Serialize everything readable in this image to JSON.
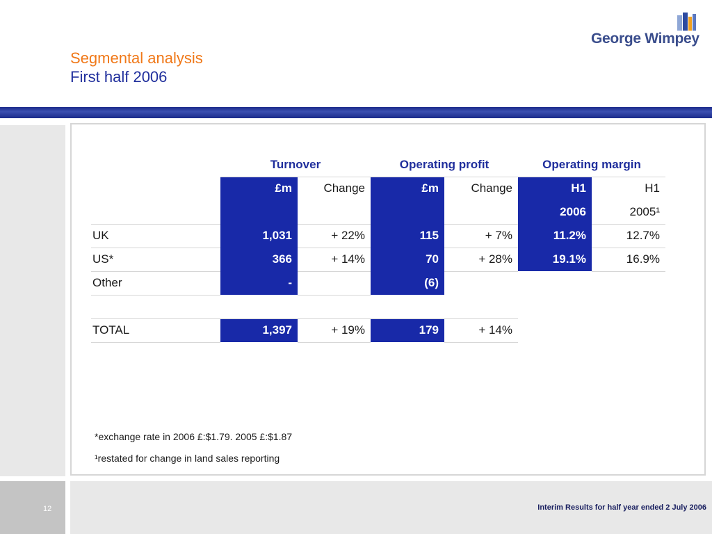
{
  "title": {
    "line1": "Segmental analysis",
    "line2": "First half 2006"
  },
  "logo": {
    "text": "George Wimpey"
  },
  "colors": {
    "title_orange": "#f07818",
    "title_blue": "#1f2e9c",
    "highlight": "#1829a8"
  },
  "table": {
    "groups": [
      "Turnover",
      "Operating profit",
      "Operating margin"
    ],
    "subheaders": {
      "row1": [
        "£m",
        "Change",
        "£m",
        "Change",
        "H1",
        "H1"
      ],
      "row2": [
        "",
        "",
        "",
        "",
        "2006",
        "2005¹"
      ]
    },
    "rows": [
      {
        "label": "UK",
        "turnover": "1,031",
        "turnover_change": "+ 22%",
        "profit": "115",
        "profit_change": "+ 7%",
        "margin_2006": "11.2%",
        "margin_2005": "12.7%"
      },
      {
        "label": "US*",
        "turnover": "366",
        "turnover_change": "+ 14%",
        "profit": "70",
        "profit_change": "+ 28%",
        "margin_2006": "19.1%",
        "margin_2005": "16.9%"
      },
      {
        "label": "Other",
        "turnover": "-",
        "turnover_change": "",
        "profit": "(6)",
        "profit_change": "",
        "margin_2006": "",
        "margin_2005": ""
      }
    ],
    "total": {
      "label": "TOTAL",
      "turnover": "1,397",
      "turnover_change": "+ 19%",
      "profit": "179",
      "profit_change": "+ 14%"
    }
  },
  "notes": {
    "note1": "*exchange rate in 2006 £:$1.79. 2005 £:$1.87",
    "note2": "¹restated for change in land sales reporting"
  },
  "footer": {
    "page_number": "12",
    "text": "Interim Results for half year ended 2 July 2006"
  }
}
